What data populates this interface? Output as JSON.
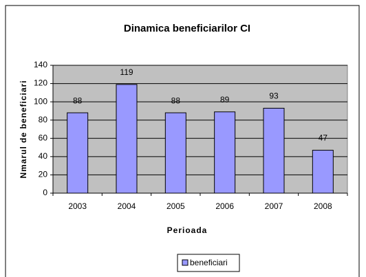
{
  "chart_data": {
    "type": "bar",
    "title": "Dinamica beneficiarilor CI",
    "x_label": "Perioada",
    "y_label": "Nmarul de beneficiari",
    "categories": [
      "2003",
      "2004",
      "2005",
      "2006",
      "2007",
      "2008"
    ],
    "series": [
      {
        "name": "beneficiari",
        "color": "#9999ff",
        "values": [
          88,
          119,
          88,
          89,
          93,
          47
        ]
      }
    ],
    "ylim": [
      0,
      140
    ],
    "yticks": [
      0,
      20,
      40,
      60,
      80,
      100,
      120,
      140
    ],
    "grid": true,
    "legend": "bottom",
    "data_labels": true
  }
}
